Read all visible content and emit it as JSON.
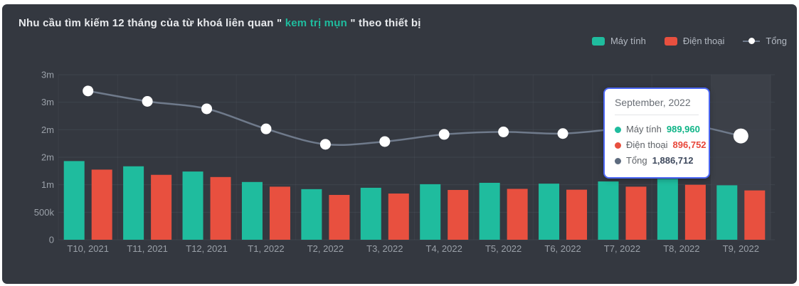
{
  "title": {
    "prefix": "Nhu cầu tìm kiếm 12 tháng của từ khoá liên quan \" ",
    "keyword": "kem trị mụn",
    "suffix": " \" theo thiết bị"
  },
  "legend": {
    "items": [
      {
        "label": "Máy tính",
        "marker": "square",
        "color": "#1fbc9e"
      },
      {
        "label": "Điện thoại",
        "marker": "square",
        "color": "#e8503f"
      },
      {
        "label": "Tổng",
        "marker": "line-dot",
        "color": "#ffffff"
      }
    ]
  },
  "tooltip": {
    "title": "September, 2022",
    "border_color": "#4b66f3",
    "rows": [
      {
        "label": "Máy tính",
        "value": "989,960",
        "dot_color": "#1fbc9e",
        "value_color": "#0fb487"
      },
      {
        "label": "Điện thoại",
        "value": "896,752",
        "dot_color": "#e8503f",
        "value_color": "#e8473a"
      },
      {
        "label": "Tổng",
        "value": "1,886,712",
        "dot_color": "#5d6b7e",
        "value_color": "#3f4a5e"
      }
    ]
  },
  "colors": {
    "card_background": "#343840",
    "grid_line": "#3e434c",
    "vertical_grid_line": "rgba(255,255,255,0.04)",
    "highlight_band": "rgba(255,255,255,0.045)",
    "axis_label": "#9aa0a8",
    "title_text": "#e8eaed",
    "keyword_green": "#1fbc9e",
    "bar_green": "#1fbc9e",
    "bar_red": "#e8503f",
    "total_line": "#6f7a8b",
    "point_fill": "#ffffff"
  },
  "chart_data": {
    "type": "bar",
    "title": "Nhu cầu tìm kiếm 12 tháng của từ khoá liên quan \" kem trị mụn \" theo thiết bị",
    "categories": [
      "T10, 2021",
      "T11, 2021",
      "T12, 2021",
      "T1, 2022",
      "T2, 2022",
      "T3, 2022",
      "T4, 2022",
      "T5, 2022",
      "T6, 2022",
      "T7, 2022",
      "T8, 2022",
      "T9, 2022"
    ],
    "series": [
      {
        "name": "Máy tính",
        "type": "bar",
        "color": "#1fbc9e",
        "values": [
          1430000,
          1335000,
          1240000,
          1050000,
          920000,
          945000,
          1010000,
          1035000,
          1020000,
          1060000,
          1105000,
          989960
        ]
      },
      {
        "name": "Điện thoại",
        "type": "bar",
        "color": "#e8503f",
        "values": [
          1275000,
          1180000,
          1140000,
          965000,
          815000,
          840000,
          905000,
          925000,
          910000,
          965000,
          1000000,
          896752
        ]
      },
      {
        "name": "Tổng",
        "type": "line",
        "color": "#6f7a8b",
        "point_color": "#ffffff",
        "values": [
          2705000,
          2515000,
          2380000,
          2015000,
          1735000,
          1785000,
          1915000,
          1960000,
          1930000,
          2025000,
          2105000,
          1886712
        ]
      }
    ],
    "ylim": [
      0,
      3000000
    ],
    "ytick_step": 500000,
    "ytick_labels_bottom_to_top": [
      "0",
      "500k",
      "1m",
      "2m",
      "2m",
      "3m",
      "3m"
    ],
    "grid": true,
    "legend_position": "top-right",
    "highlighted_category_index": 11,
    "hidden_point_indices": [
      9,
      10
    ],
    "hover_category": "T9, 2022"
  }
}
